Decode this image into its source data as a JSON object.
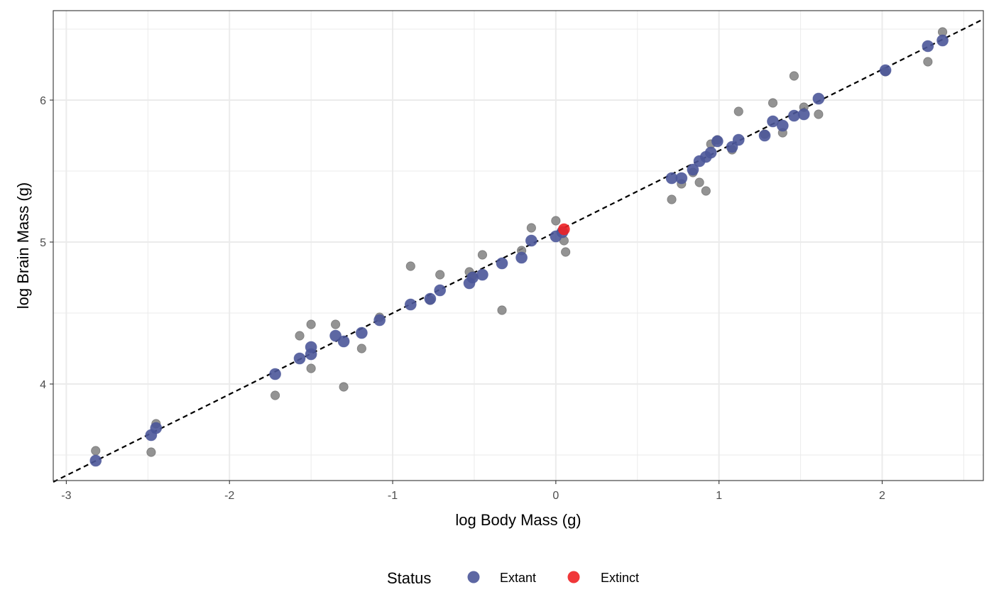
{
  "chart_data": {
    "type": "scatter",
    "title": "",
    "xlabel": "log Body Mass (g)",
    "ylabel": "log Brain Mass (g)",
    "xlim": [
      -3.08,
      2.62
    ],
    "ylim": [
      3.32,
      6.63
    ],
    "x_ticks": [
      -3,
      -2,
      -1,
      0,
      1,
      2
    ],
    "y_ticks": [
      4,
      5,
      6
    ],
    "x_tick_labels": [
      "-3",
      "-2",
      "-1",
      "0",
      "1",
      "2"
    ],
    "y_tick_labels": [
      "4",
      "5",
      "6"
    ],
    "grid": true,
    "reference_line": {
      "style": "dashed",
      "color": "#000000",
      "points": [
        [
          -3.08,
          3.31
        ],
        [
          2.62,
          6.57
        ]
      ]
    },
    "legend": {
      "title": "Status",
      "position": "bottom"
    },
    "series": [
      {
        "name": "Extant",
        "color": "#4B5799",
        "points": [
          [
            -2.82,
            3.46
          ],
          [
            -2.48,
            3.64
          ],
          [
            -2.45,
            3.69
          ],
          [
            -1.72,
            4.07
          ],
          [
            -1.57,
            4.18
          ],
          [
            -1.5,
            4.21
          ],
          [
            -1.5,
            4.26
          ],
          [
            -1.35,
            4.34
          ],
          [
            -1.3,
            4.3
          ],
          [
            -1.19,
            4.36
          ],
          [
            -1.08,
            4.45
          ],
          [
            -0.89,
            4.56
          ],
          [
            -0.77,
            4.6
          ],
          [
            -0.71,
            4.66
          ],
          [
            -0.53,
            4.71
          ],
          [
            -0.51,
            4.75
          ],
          [
            -0.45,
            4.77
          ],
          [
            -0.33,
            4.85
          ],
          [
            -0.21,
            4.89
          ],
          [
            -0.15,
            5.01
          ],
          [
            0.0,
            5.04
          ],
          [
            0.04,
            5.07
          ],
          [
            0.71,
            5.45
          ],
          [
            0.77,
            5.45
          ],
          [
            0.84,
            5.51
          ],
          [
            0.88,
            5.57
          ],
          [
            0.92,
            5.6
          ],
          [
            0.95,
            5.63
          ],
          [
            0.99,
            5.71
          ],
          [
            1.08,
            5.67
          ],
          [
            1.12,
            5.72
          ],
          [
            1.28,
            5.75
          ],
          [
            1.33,
            5.85
          ],
          [
            1.39,
            5.82
          ],
          [
            1.46,
            5.89
          ],
          [
            1.52,
            5.9
          ],
          [
            1.61,
            6.01
          ],
          [
            2.02,
            6.21
          ],
          [
            2.28,
            6.38
          ],
          [
            2.37,
            6.42
          ]
        ]
      },
      {
        "name": "Extinct",
        "color": "#EE2124",
        "points": [
          [
            0.05,
            5.09
          ]
        ]
      },
      {
        "name": "",
        "color": "#808080",
        "points": [
          [
            -2.82,
            3.53
          ],
          [
            -2.48,
            3.52
          ],
          [
            -2.45,
            3.72
          ],
          [
            -1.72,
            3.92
          ],
          [
            -1.57,
            4.34
          ],
          [
            -1.5,
            4.42
          ],
          [
            -1.5,
            4.11
          ],
          [
            -1.35,
            4.42
          ],
          [
            -1.3,
            3.98
          ],
          [
            -1.19,
            4.25
          ],
          [
            -1.08,
            4.47
          ],
          [
            -0.89,
            4.83
          ],
          [
            -0.77,
            4.59
          ],
          [
            -0.71,
            4.77
          ],
          [
            -0.53,
            4.79
          ],
          [
            -0.51,
            4.76
          ],
          [
            -0.45,
            4.91
          ],
          [
            -0.33,
            4.52
          ],
          [
            -0.21,
            4.94
          ],
          [
            -0.15,
            5.1
          ],
          [
            0.0,
            5.15
          ],
          [
            0.05,
            5.01
          ],
          [
            0.06,
            4.93
          ],
          [
            0.71,
            5.3
          ],
          [
            0.77,
            5.41
          ],
          [
            0.84,
            5.49
          ],
          [
            0.88,
            5.42
          ],
          [
            0.92,
            5.36
          ],
          [
            0.95,
            5.69
          ],
          [
            0.99,
            5.72
          ],
          [
            1.08,
            5.65
          ],
          [
            1.12,
            5.92
          ],
          [
            1.28,
            5.76
          ],
          [
            1.33,
            5.98
          ],
          [
            1.39,
            5.77
          ],
          [
            1.46,
            6.17
          ],
          [
            1.52,
            5.95
          ],
          [
            1.61,
            5.9
          ],
          [
            2.02,
            6.2
          ],
          [
            2.28,
            6.27
          ],
          [
            2.37,
            6.48
          ]
        ]
      }
    ]
  }
}
